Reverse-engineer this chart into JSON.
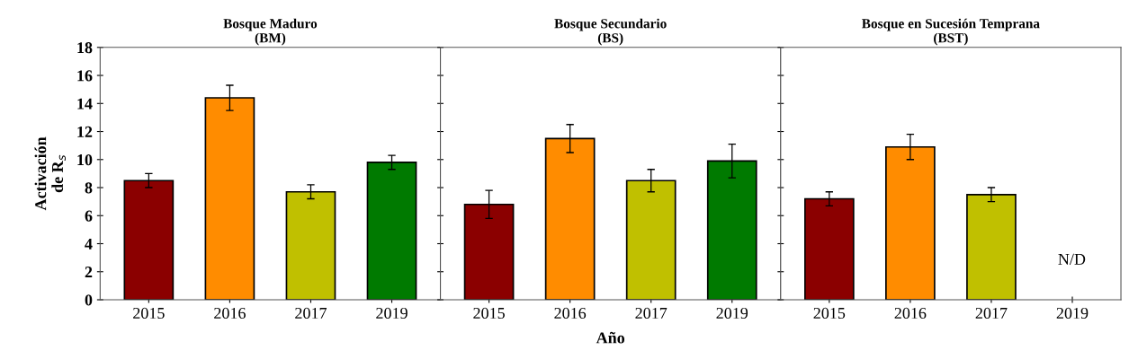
{
  "chart_data": [
    {
      "type": "bar",
      "title": "Bosque Maduro\n(BM)",
      "ylabel": "Activación\nde R$_{s}$",
      "categories": [
        "2015",
        "2016",
        "2017",
        "2019"
      ],
      "values": [
        8.5,
        14.4,
        7.7,
        9.8
      ],
      "errors": [
        0.5,
        0.9,
        0.5,
        0.5
      ],
      "colors": [
        "#8b0000",
        "#ff8c00",
        "#c0c000",
        "#007a00"
      ],
      "ylim": [
        0,
        18
      ],
      "yticks": [
        0,
        2,
        4,
        6,
        8,
        10,
        12,
        14,
        16,
        18
      ]
    },
    {
      "type": "bar",
      "title": "Bosque Secundario\n(BS)",
      "xlabel": "Año",
      "categories": [
        "2015",
        "2016",
        "2017",
        "2019"
      ],
      "values": [
        6.8,
        11.5,
        8.5,
        9.9
      ],
      "errors": [
        1.0,
        1.0,
        0.8,
        1.2
      ],
      "colors": [
        "#8b0000",
        "#ff8c00",
        "#c0c000",
        "#007a00"
      ],
      "ylim": [
        0,
        18
      ],
      "yticks": [
        0,
        2,
        4,
        6,
        8,
        10,
        12,
        14,
        16,
        18
      ],
      "tick_labels": "x"
    },
    {
      "type": "bar",
      "title": "Bosque en Sucesión Temprana\n(BST)",
      "categories": [
        "2015",
        "2016",
        "2017",
        "2019"
      ],
      "values": [
        7.2,
        10.9,
        7.5,
        null
      ],
      "errors": [
        0.5,
        0.9,
        0.5,
        null
      ],
      "colors": [
        "#8b0000",
        "#ff8c00",
        "#c0c000",
        "#007a00"
      ],
      "ylim": [
        0,
        18
      ],
      "yticks": [
        0,
        2,
        4,
        6,
        8,
        10,
        12,
        14,
        16,
        18
      ],
      "tick_labels": "x",
      "annotations": [
        "N/D"
      ]
    }
  ]
}
